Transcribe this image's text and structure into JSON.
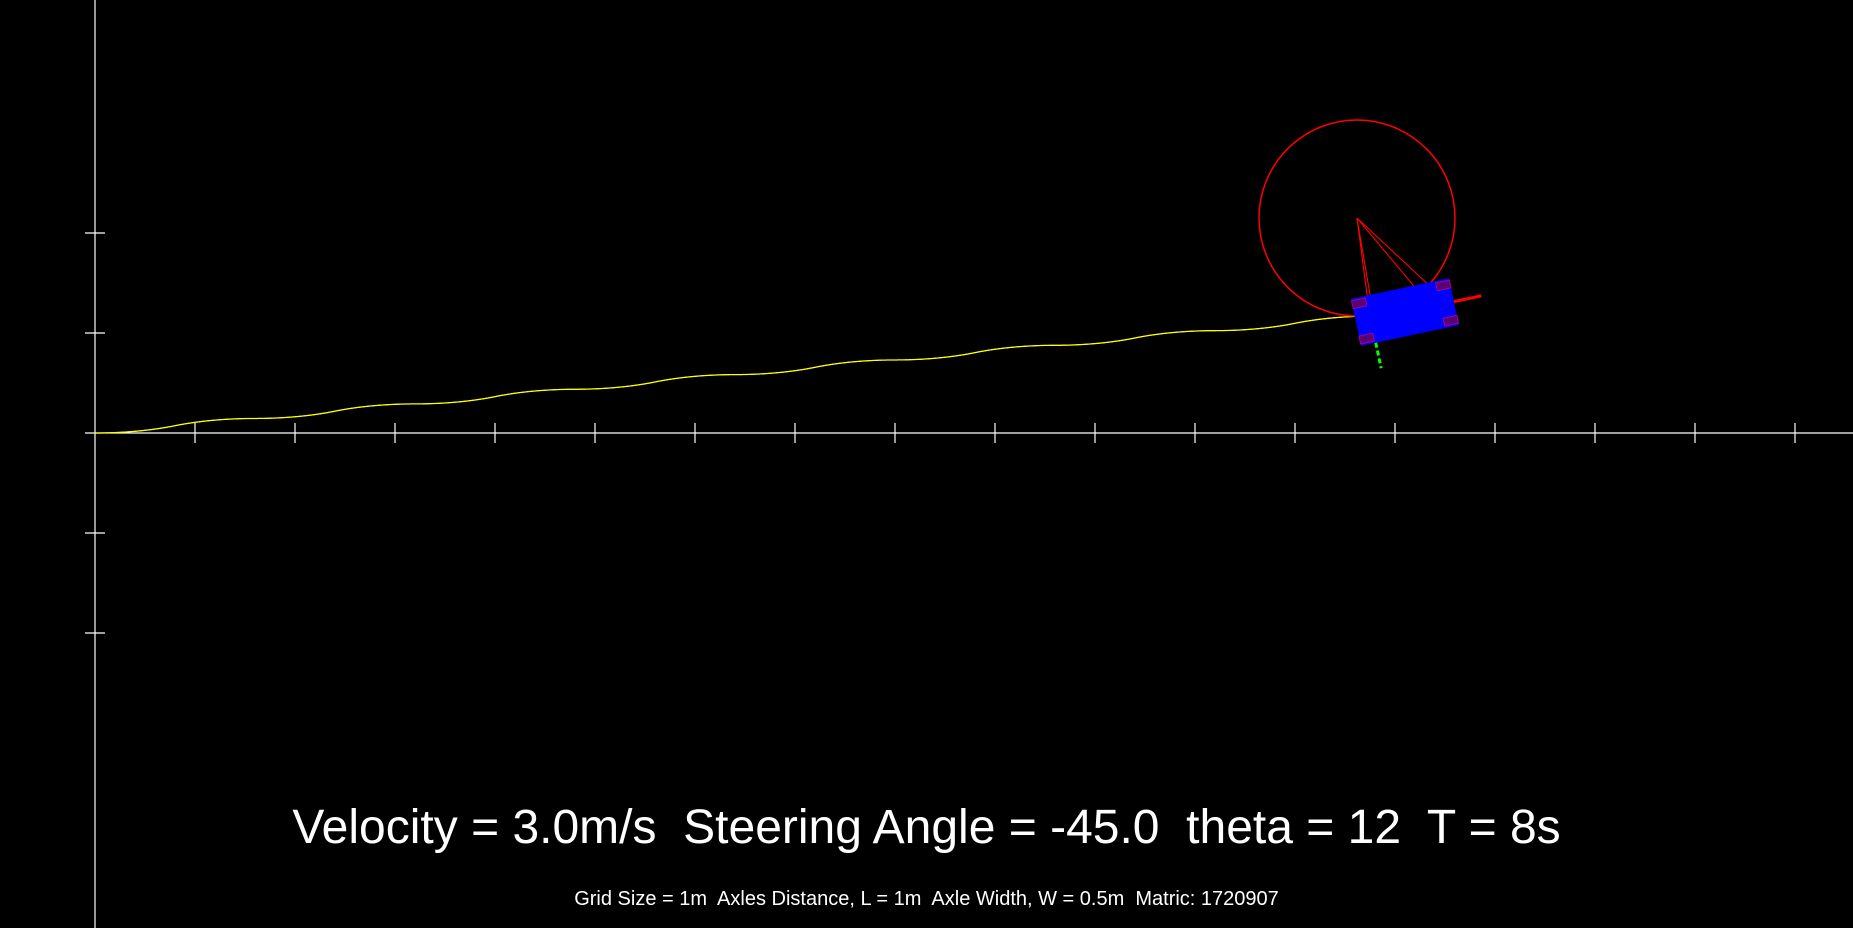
{
  "hud": {
    "main_line": "Velocity = 3.0m/s  Steering Angle = -45.0  theta = 12  T = 8s",
    "info_line": "Grid Size = 1m  Axles Distance, L = 1m  Axle Width, W = 0.5m  Matric: 1720907"
  },
  "simulation": {
    "velocity_mps": 3.0,
    "steering_angle_deg": -45.0,
    "theta_deg": 12,
    "time_s": 8,
    "grid_size_m": 1,
    "axle_distance_m": 1,
    "axle_width_m": 0.5
  },
  "colors": {
    "background": "#000000",
    "axes": "#ffffff",
    "trajectory": "#ffff00",
    "turning_circle": "#ff0000",
    "car_body": "#0000ff",
    "car_x_axis": "#ff0000",
    "car_y_axis": "#00ff00",
    "text": "#ffffff"
  }
}
